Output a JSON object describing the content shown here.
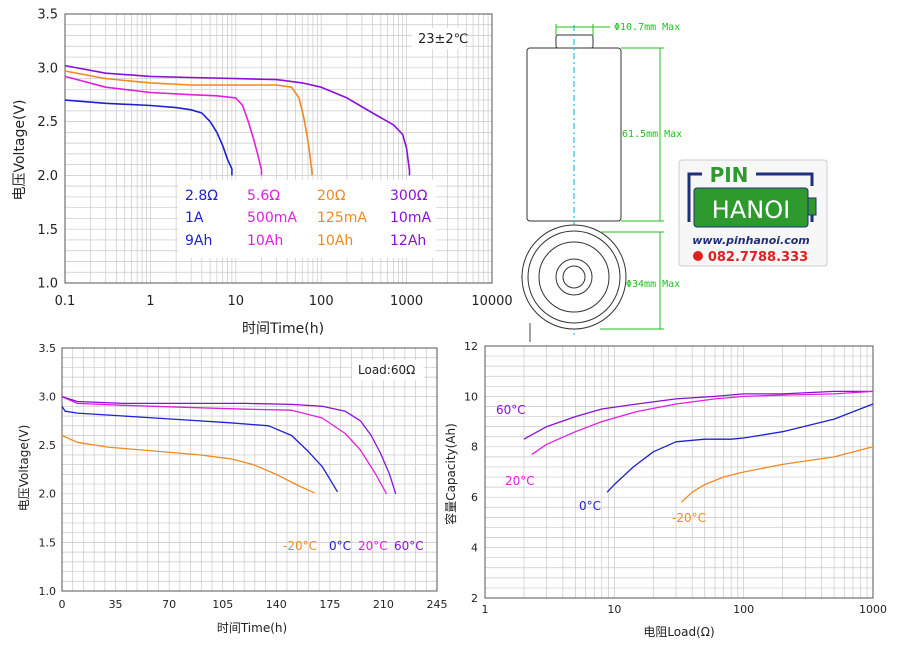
{
  "colors": {
    "blue": "#2020d0",
    "magenta": "#e020e0",
    "orange": "#f08a20",
    "purple": "#8a10d8",
    "dim_green": "#20c020",
    "dim_cyan": "#00b8d8",
    "logo_green": "#2e9a2e",
    "logo_navy": "#1f2f7a",
    "logo_red": "#e02020"
  },
  "drawing": {
    "diameter_top": "Φ10.7mm Max",
    "height": "61.5mm Max",
    "diameter_body": "Φ34mm Max"
  },
  "logo": {
    "pin": "PIN",
    "hanoi": "HANOI",
    "url": "www.pinhanoi.com",
    "phone": "082.7788.333"
  },
  "chart_data": [
    {
      "type": "line",
      "annotation": "23±2℃",
      "xlabel": "时间Time(h)",
      "ylabel": "电压Voltage(V)",
      "xscale": "log",
      "xlim": [
        0.1,
        10000
      ],
      "ylim": [
        1.0,
        3.5
      ],
      "xticks": [
        "0.1",
        "1",
        "10",
        "100",
        "1000",
        "10000"
      ],
      "yticks": [
        "1.0",
        "1.5",
        "2.0",
        "2.5",
        "3.0",
        "3.5"
      ],
      "grid": true,
      "legend": [
        {
          "series": 0,
          "lines": [
            "2.8Ω",
            "1A",
            "9Ah"
          ]
        },
        {
          "series": 1,
          "lines": [
            "5.6Ω",
            "500mA",
            "10Ah"
          ]
        },
        {
          "series": 2,
          "lines": [
            "20Ω",
            "125mA",
            "10Ah"
          ]
        },
        {
          "series": 3,
          "lines": [
            "300Ω",
            "10mA",
            "12Ah"
          ]
        }
      ],
      "series": [
        {
          "color": "blue",
          "x": [
            0.1,
            0.3,
            1,
            2,
            3,
            4,
            5,
            6,
            7,
            8,
            9,
            9
          ],
          "y": [
            2.7,
            2.67,
            2.65,
            2.63,
            2.61,
            2.58,
            2.5,
            2.4,
            2.28,
            2.15,
            2.06,
            2.0
          ]
        },
        {
          "color": "magenta",
          "x": [
            0.1,
            0.3,
            1,
            3,
            6,
            10,
            12,
            14,
            16,
            18,
            20,
            20
          ],
          "y": [
            2.92,
            2.82,
            2.77,
            2.75,
            2.74,
            2.72,
            2.65,
            2.5,
            2.35,
            2.2,
            2.05,
            2.0
          ]
        },
        {
          "color": "orange",
          "x": [
            0.1,
            0.3,
            1,
            3,
            10,
            30,
            45,
            55,
            62,
            68,
            73,
            76,
            78,
            78
          ],
          "y": [
            2.97,
            2.9,
            2.86,
            2.84,
            2.84,
            2.84,
            2.82,
            2.72,
            2.55,
            2.38,
            2.22,
            2.1,
            2.03,
            2.0
          ]
        },
        {
          "color": "purple",
          "x": [
            0.1,
            0.3,
            1,
            3,
            10,
            30,
            60,
            100,
            200,
            400,
            700,
            900,
            1000,
            1050,
            1080,
            1080
          ],
          "y": [
            3.02,
            2.95,
            2.92,
            2.91,
            2.9,
            2.89,
            2.86,
            2.82,
            2.72,
            2.58,
            2.47,
            2.38,
            2.25,
            2.12,
            2.05,
            2.0
          ]
        }
      ]
    },
    {
      "type": "line",
      "annotation": "Load:60Ω",
      "xlabel": "时间Time(h)",
      "ylabel": "电压Voltage(V)",
      "xlim": [
        0,
        245
      ],
      "ylim": [
        1.0,
        3.5
      ],
      "xticks": [
        "0",
        "35",
        "70",
        "105",
        "140",
        "175",
        "210",
        "245"
      ],
      "yticks": [
        "1.0",
        "1.5",
        "2.0",
        "2.5",
        "3.0",
        "3.5"
      ],
      "grid": true,
      "series": [
        {
          "name": "-20°C",
          "color": "orange",
          "x": [
            0,
            10,
            30,
            60,
            90,
            110,
            125,
            140,
            155,
            165
          ],
          "y": [
            2.6,
            2.53,
            2.48,
            2.44,
            2.4,
            2.36,
            2.3,
            2.2,
            2.08,
            2.01
          ]
        },
        {
          "name": "0°C",
          "color": "blue",
          "x": [
            0,
            2,
            10,
            40,
            80,
            110,
            135,
            150,
            160,
            170,
            175,
            180
          ],
          "y": [
            2.9,
            2.85,
            2.83,
            2.8,
            2.76,
            2.73,
            2.7,
            2.6,
            2.45,
            2.28,
            2.15,
            2.02
          ]
        },
        {
          "name": "20°C",
          "color": "magenta",
          "x": [
            0,
            10,
            40,
            80,
            120,
            150,
            170,
            185,
            195,
            205,
            212
          ],
          "y": [
            3.0,
            2.93,
            2.91,
            2.89,
            2.87,
            2.86,
            2.78,
            2.62,
            2.45,
            2.2,
            2.0
          ]
        },
        {
          "name": "60°C",
          "color": "purple",
          "x": [
            0,
            10,
            40,
            80,
            120,
            150,
            170,
            185,
            195,
            202,
            208,
            214,
            218
          ],
          "y": [
            3.0,
            2.95,
            2.93,
            2.93,
            2.93,
            2.92,
            2.9,
            2.85,
            2.75,
            2.6,
            2.42,
            2.2,
            2.0
          ]
        }
      ]
    },
    {
      "type": "line",
      "xlabel": "电阻Load(Ω)",
      "ylabel": "容量Capacity(Ah)",
      "xscale": "log",
      "xlim": [
        1,
        1000
      ],
      "ylim": [
        2,
        12
      ],
      "xticks": [
        "1",
        "10",
        "100",
        "1000"
      ],
      "yticks": [
        "2",
        "4",
        "6",
        "8",
        "10",
        "12"
      ],
      "grid": true,
      "series": [
        {
          "name": "60°C",
          "color": "purple",
          "x": [
            2,
            3,
            5,
            8,
            15,
            30,
            60,
            100,
            200,
            500,
            1000
          ],
          "y": [
            8.3,
            8.8,
            9.2,
            9.5,
            9.7,
            9.9,
            10.0,
            10.1,
            10.1,
            10.2,
            10.2
          ]
        },
        {
          "name": "20°C",
          "color": "magenta",
          "x": [
            2.3,
            3,
            5,
            8,
            15,
            30,
            60,
            100,
            200,
            500,
            1000
          ],
          "y": [
            7.7,
            8.1,
            8.6,
            9.0,
            9.4,
            9.7,
            9.9,
            10.0,
            10.05,
            10.1,
            10.2
          ]
        },
        {
          "name": "0°C",
          "color": "blue",
          "x": [
            8.8,
            10,
            14,
            20,
            30,
            50,
            80,
            100,
            200,
            500,
            1000
          ],
          "y": [
            6.2,
            6.5,
            7.2,
            7.8,
            8.2,
            8.3,
            8.3,
            8.35,
            8.6,
            9.1,
            9.7
          ]
        },
        {
          "name": "-20°C",
          "color": "orange",
          "x": [
            33,
            40,
            50,
            70,
            100,
            200,
            500,
            1000
          ],
          "y": [
            5.8,
            6.2,
            6.5,
            6.8,
            7.0,
            7.3,
            7.6,
            8.0
          ]
        }
      ]
    }
  ]
}
